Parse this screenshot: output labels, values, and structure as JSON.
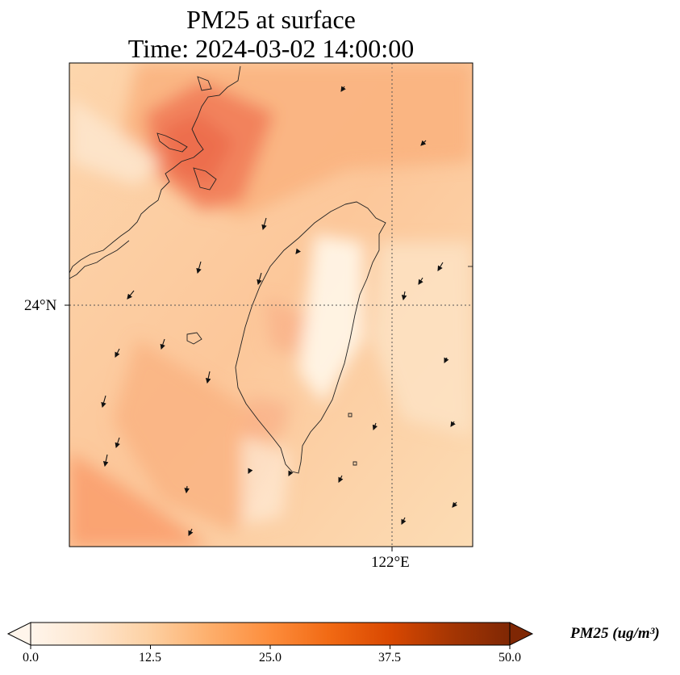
{
  "title": {
    "line1": "PM25 at surface",
    "line2": "Time: 2024-03-02 14:00:00"
  },
  "axes": {
    "lat_label": "24°N",
    "lon_label": "122°E"
  },
  "colorbar": {
    "label": "PM25 (ug/m³)",
    "ticks": [
      "0.0",
      "12.5",
      "25.0",
      "37.5",
      "50.0"
    ],
    "min": 0,
    "max": 50,
    "colormap": [
      "#fff5eb",
      "#fee6ce",
      "#fdd0a2",
      "#fdae6b",
      "#fd8d3c",
      "#f16913",
      "#d94801",
      "#a63603",
      "#7f2704"
    ],
    "extend": "both"
  },
  "colors": {
    "map_background": "#fcd9b2",
    "coastline": "#222222",
    "gridline": "#555555"
  }
}
